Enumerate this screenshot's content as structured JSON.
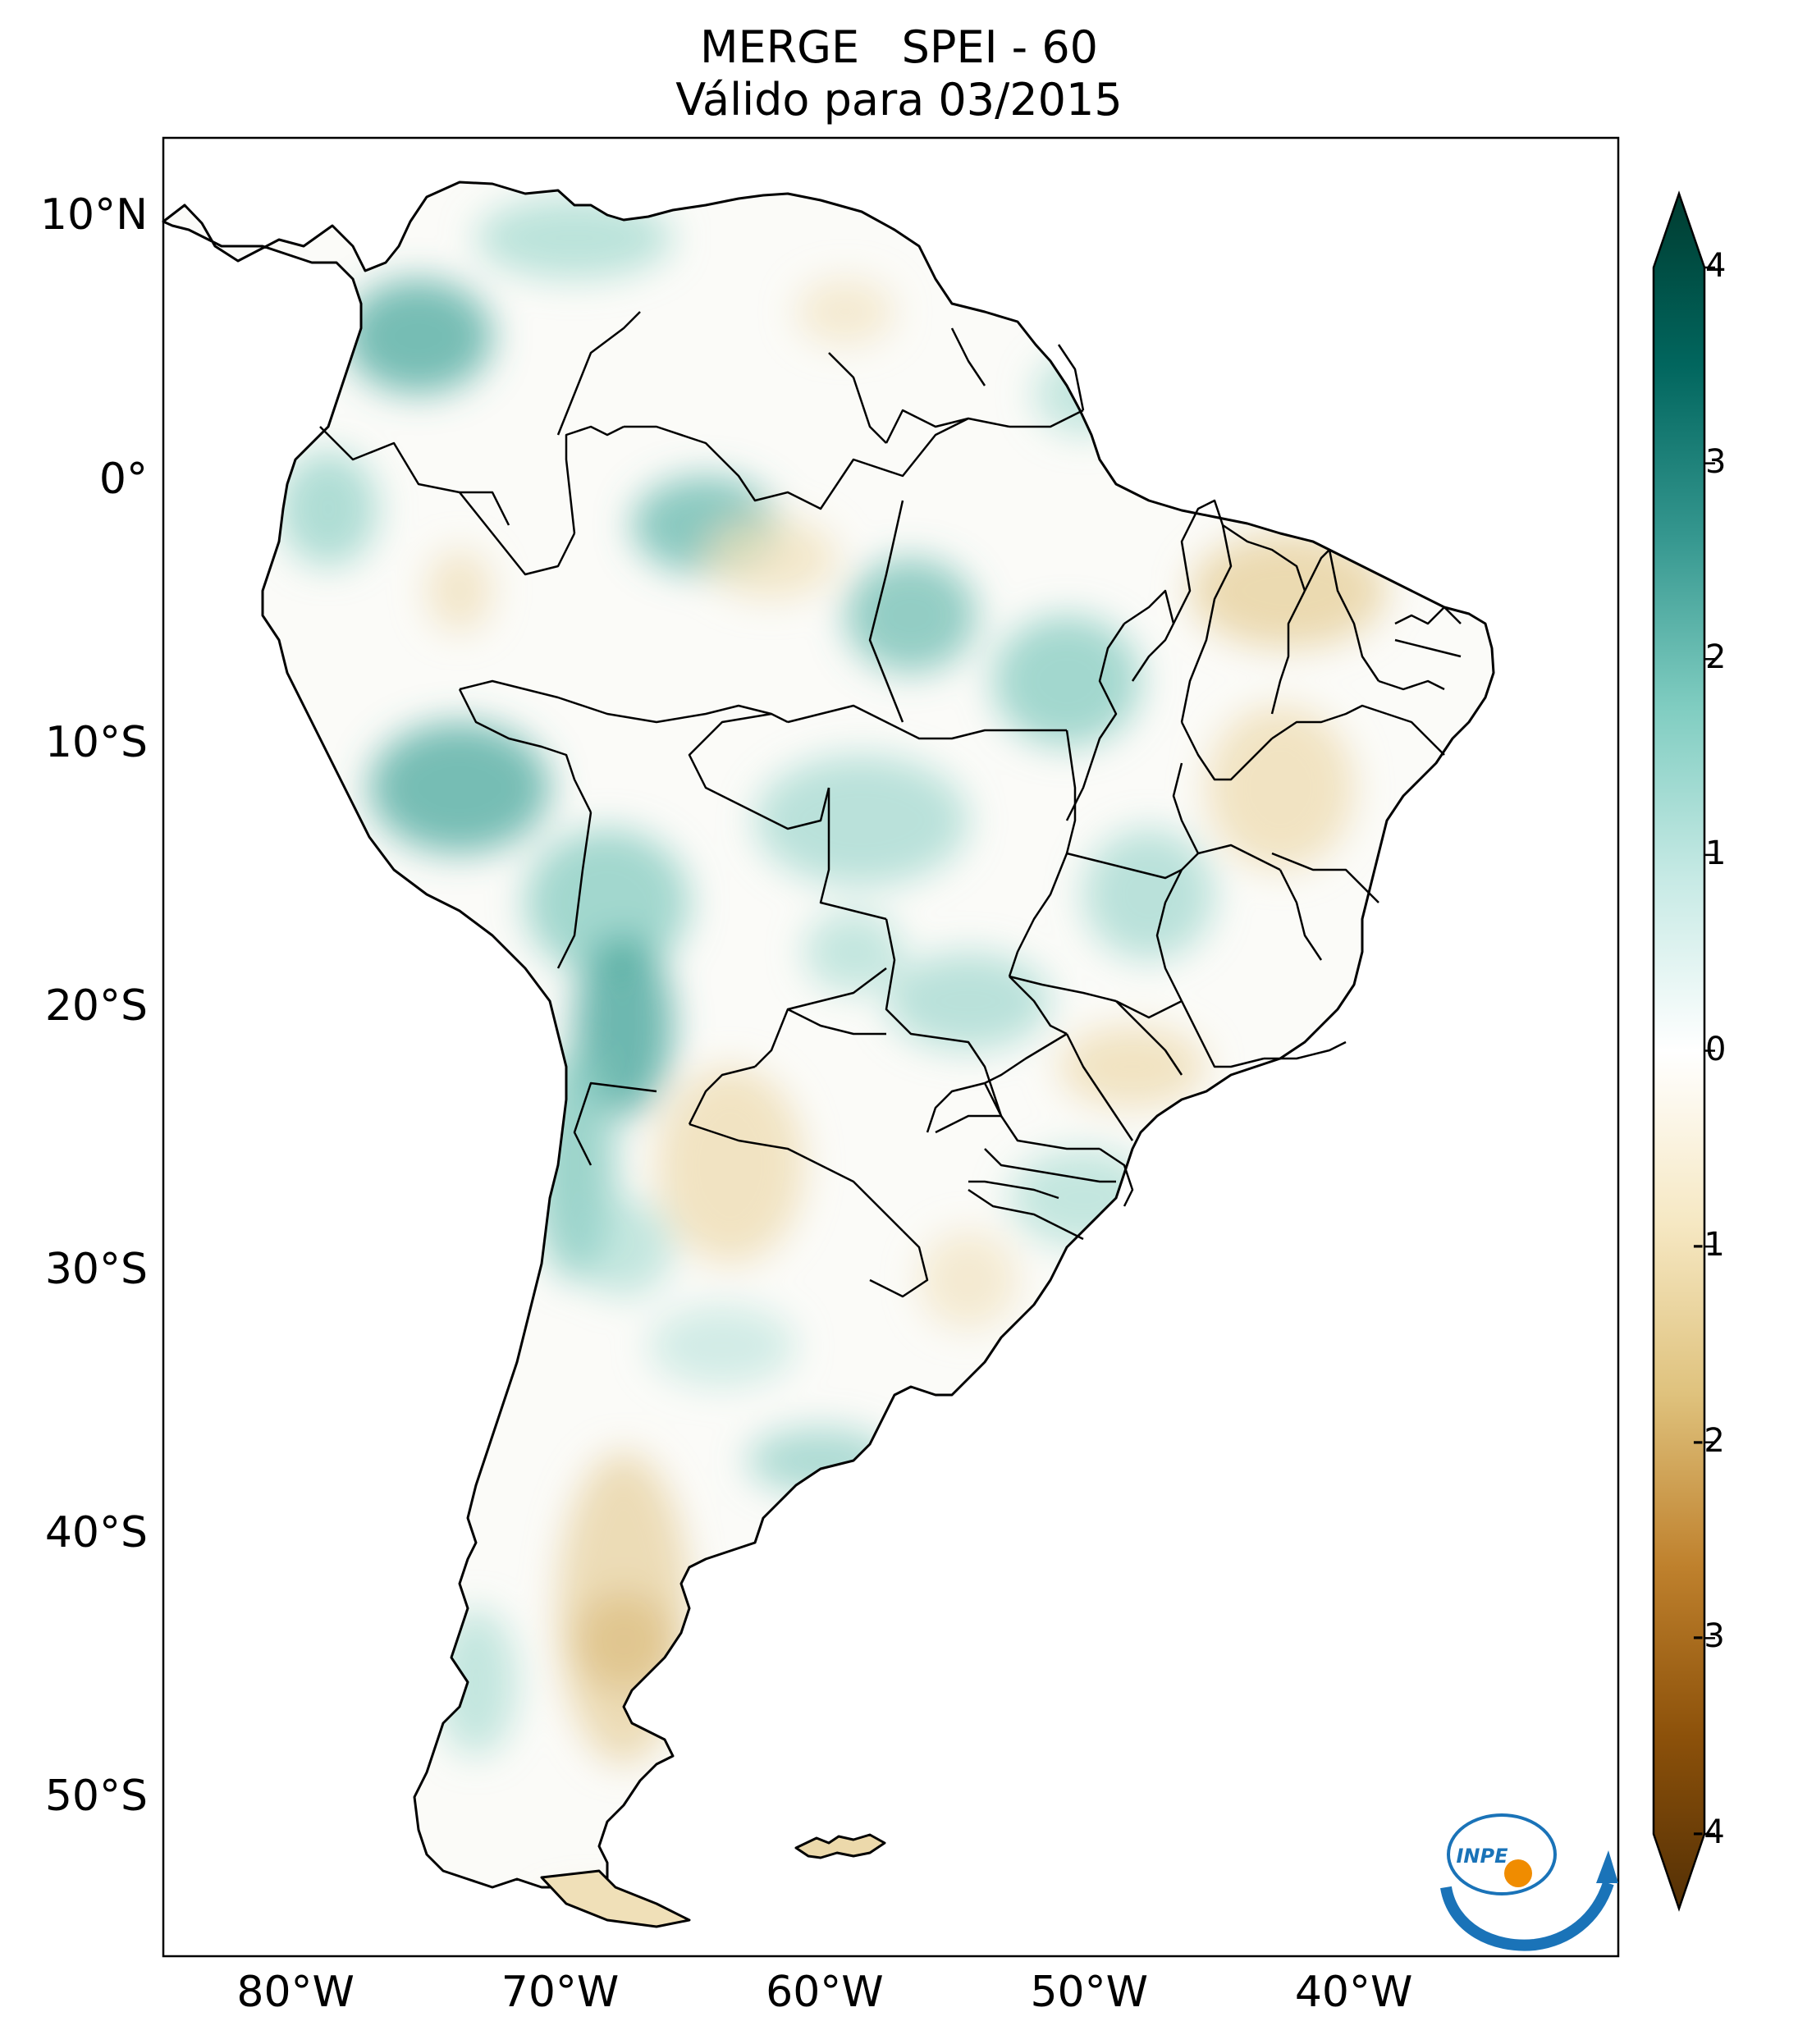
{
  "title": {
    "line1": "MERGE   SPEI - 60",
    "line2": "Válido para 03/2015"
  },
  "map": {
    "lon_range": [
      -85,
      -30
    ],
    "lat_range": [
      -56,
      13
    ],
    "lat_labels": [
      {
        "value": 10,
        "text": "10°N"
      },
      {
        "value": 0,
        "text": "0°"
      },
      {
        "value": -10,
        "text": "10°S"
      },
      {
        "value": -20,
        "text": "20°S"
      },
      {
        "value": -30,
        "text": "30°S"
      },
      {
        "value": -40,
        "text": "40°S"
      },
      {
        "value": -50,
        "text": "50°S"
      }
    ],
    "lon_labels": [
      {
        "value": -80,
        "text": "80°W"
      },
      {
        "value": -70,
        "text": "70°W"
      },
      {
        "value": -60,
        "text": "60°W"
      },
      {
        "value": -50,
        "text": "50°W"
      },
      {
        "value": -40,
        "text": "40°W"
      }
    ]
  },
  "colorbar": {
    "ticks": [
      "4",
      "3",
      "2",
      "1",
      "0",
      "-1",
      "-2",
      "-3",
      "-4"
    ],
    "range": [
      -4,
      4
    ],
    "extend": "both",
    "colors": [
      "#543005",
      "#8c510a",
      "#bf812d",
      "#dfc27d",
      "#f6e8c3",
      "#ffffff",
      "#c7eae5",
      "#80cdc1",
      "#35978f",
      "#01665e",
      "#003c30"
    ]
  },
  "logo": {
    "text": "INPE",
    "colors": [
      "#1a73b8",
      "#f08c00"
    ]
  }
}
